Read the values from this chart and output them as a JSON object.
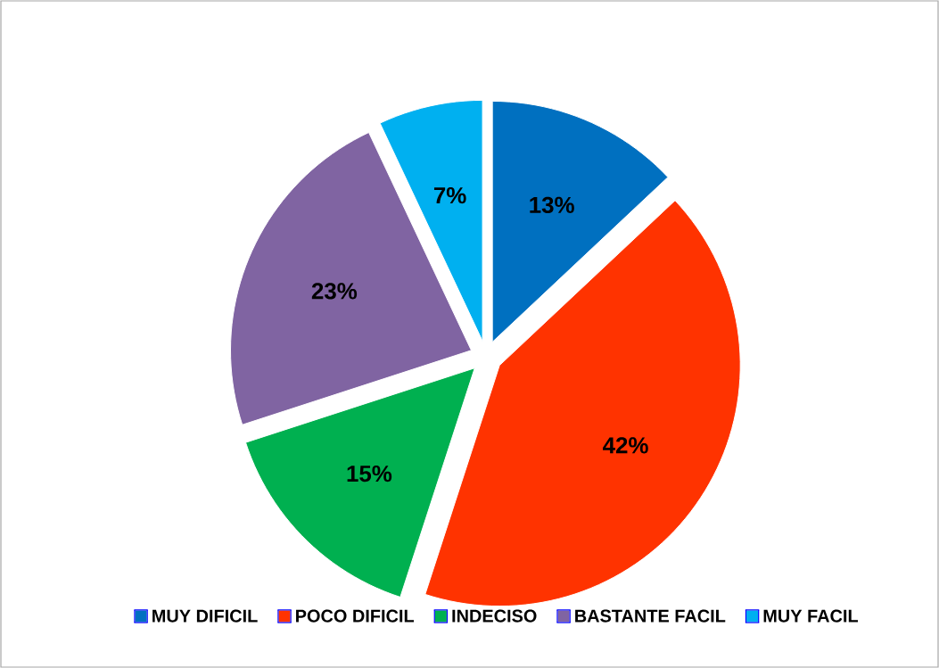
{
  "chart_data": {
    "type": "pie",
    "categories": [
      "MUY DIFICIL",
      "POCO DIFICIL",
      "INDECISO",
      "BASTANTE FACIL",
      "MUY FACIL"
    ],
    "values": [
      13,
      42,
      15,
      23,
      7
    ],
    "value_labels": [
      "13%",
      "42%",
      "15%",
      "23%",
      "7%"
    ],
    "colors": [
      "#0070c0",
      "#ff3300",
      "#00b050",
      "#8064a2",
      "#00b0f0"
    ],
    "legend": "bottom"
  }
}
